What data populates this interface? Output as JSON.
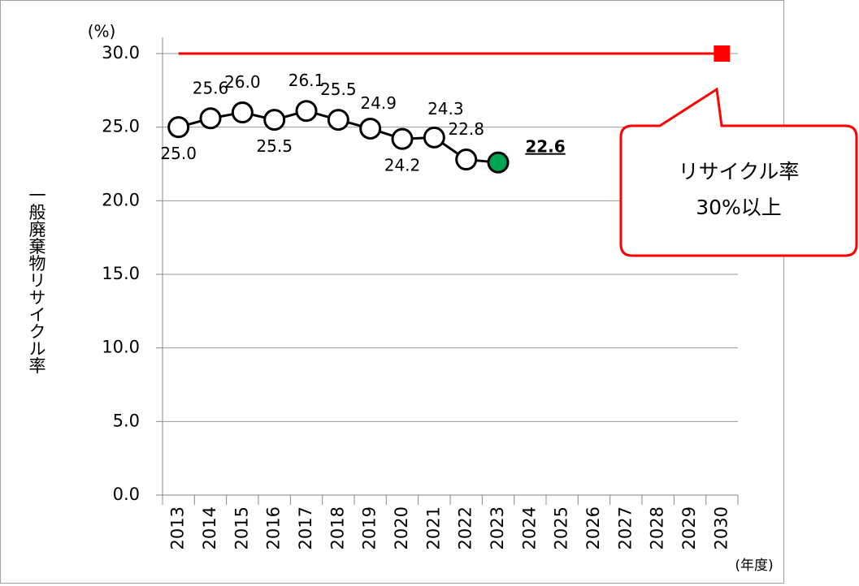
{
  "chart_data": {
    "type": "line",
    "y_unit": "(%)",
    "ylabel": "一般廃棄物リサイクル率",
    "xlabel": "(年度)",
    "categories": [
      "2013",
      "2014",
      "2015",
      "2016",
      "2017",
      "2018",
      "2019",
      "2020",
      "2021",
      "2022",
      "2023",
      "2024",
      "2025",
      "2026",
      "2027",
      "2028",
      "2029",
      "2030"
    ],
    "series": [
      {
        "color": "#000000",
        "marker_fill": "#ffffff",
        "highlight_color": "#00a651",
        "values": [
          25.0,
          25.6,
          26.0,
          25.5,
          26.1,
          25.5,
          24.9,
          24.2,
          24.3,
          22.8,
          22.6,
          null,
          null,
          null,
          null,
          null,
          null,
          null
        ],
        "value_labels": [
          "25.0",
          "25.6",
          "26.0",
          "25.5",
          "26.1",
          "25.5",
          "24.9",
          "24.2",
          "24.3",
          "22.8",
          "22.6",
          null,
          null,
          null,
          null,
          null,
          null,
          null
        ]
      }
    ],
    "target": {
      "value": 30,
      "color": "#ff0000"
    },
    "annotations": [
      "リサイクル率",
      "30%以上"
    ],
    "ylim": [
      0,
      30
    ],
    "yticks": [
      {
        "value": 0,
        "label": "0.0"
      },
      {
        "value": 5,
        "label": "5.0"
      },
      {
        "value": 10,
        "label": "10.0"
      },
      {
        "value": 15,
        "label": "15.0"
      },
      {
        "value": 20,
        "label": "20.0"
      },
      {
        "value": 25,
        "label": "25.0"
      },
      {
        "value": 30,
        "label": "30.0"
      }
    ],
    "grid": true
  }
}
